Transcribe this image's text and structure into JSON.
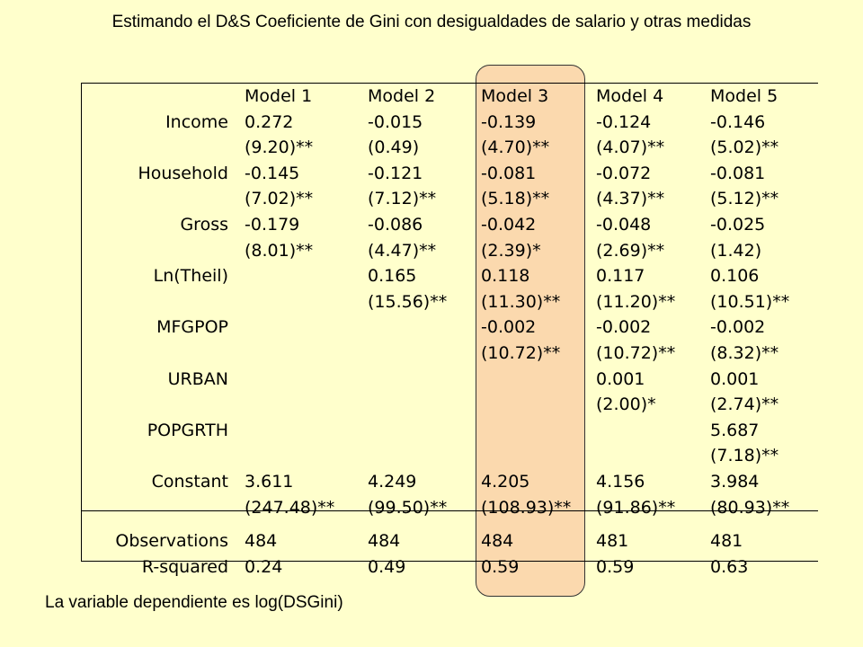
{
  "title": "Estimando el D&S Coeficiente de  Gini  con desigualdades de salario y otras medidas",
  "note": "La variable dependiente es  log(DSGini)",
  "highlight_color": "#fbd9ae",
  "background_color": "#ffffcc",
  "headers": [
    "",
    "Model 1",
    "Model 2",
    "Model 3",
    "Model 4",
    "Model 5"
  ],
  "rows": [
    {
      "label": "Income",
      "cells": [
        "0.272",
        "-0.015",
        "-0.139",
        "-0.124",
        "-0.146"
      ]
    },
    {
      "label": "",
      "cells": [
        "(9.20)**",
        "(0.49)",
        "(4.70)**",
        "(4.07)**",
        "(5.02)**"
      ]
    },
    {
      "label": "Household",
      "cells": [
        "-0.145",
        "-0.121",
        "-0.081",
        "-0.072",
        "-0.081"
      ]
    },
    {
      "label": "",
      "cells": [
        "(7.02)**",
        "(7.12)**",
        "(5.18)**",
        "(4.37)**",
        "(5.12)**"
      ]
    },
    {
      "label": "Gross",
      "cells": [
        "-0.179",
        "-0.086",
        "-0.042",
        "-0.048",
        "-0.025"
      ]
    },
    {
      "label": "",
      "cells": [
        "(8.01)**",
        "(4.47)**",
        "(2.39)*",
        "(2.69)**",
        "(1.42)"
      ]
    },
    {
      "label": "Ln(Theil)",
      "cells": [
        "",
        "0.165",
        "0.118",
        "0.117",
        "0.106"
      ]
    },
    {
      "label": "",
      "cells": [
        "",
        "(15.56)**",
        "(11.30)**",
        "(11.20)**",
        "(10.51)**"
      ]
    },
    {
      "label": "MFGPOP",
      "cells": [
        "",
        "",
        "-0.002",
        "-0.002",
        "-0.002"
      ]
    },
    {
      "label": "",
      "cells": [
        "",
        "",
        "(10.72)**",
        "(10.72)**",
        "(8.32)**"
      ]
    },
    {
      "label": "URBAN",
      "cells": [
        "",
        "",
        "",
        "0.001",
        "0.001"
      ]
    },
    {
      "label": "",
      "cells": [
        "",
        "",
        "",
        "(2.00)*",
        "(2.74)**"
      ]
    },
    {
      "label": "POPGRTH",
      "cells": [
        "",
        "",
        "",
        "",
        "5.687"
      ]
    },
    {
      "label": "",
      "cells": [
        "",
        "",
        "",
        "",
        "(7.18)**"
      ]
    },
    {
      "label": "Constant",
      "cells": [
        "3.611",
        "4.249",
        "4.205",
        "4.156",
        "3.984"
      ]
    },
    {
      "label": "",
      "cells": [
        "(247.48)**",
        "(99.50)**",
        "(108.93)**",
        "(91.86)**",
        "(80.93)**"
      ]
    }
  ],
  "stats": [
    {
      "label": "Observations",
      "cells": [
        "484",
        "484",
        "484",
        "481",
        "481"
      ]
    },
    {
      "label": "R-squared",
      "cells": [
        "0.24",
        "0.49",
        "0.59",
        "0.59",
        "0.63"
      ]
    }
  ]
}
